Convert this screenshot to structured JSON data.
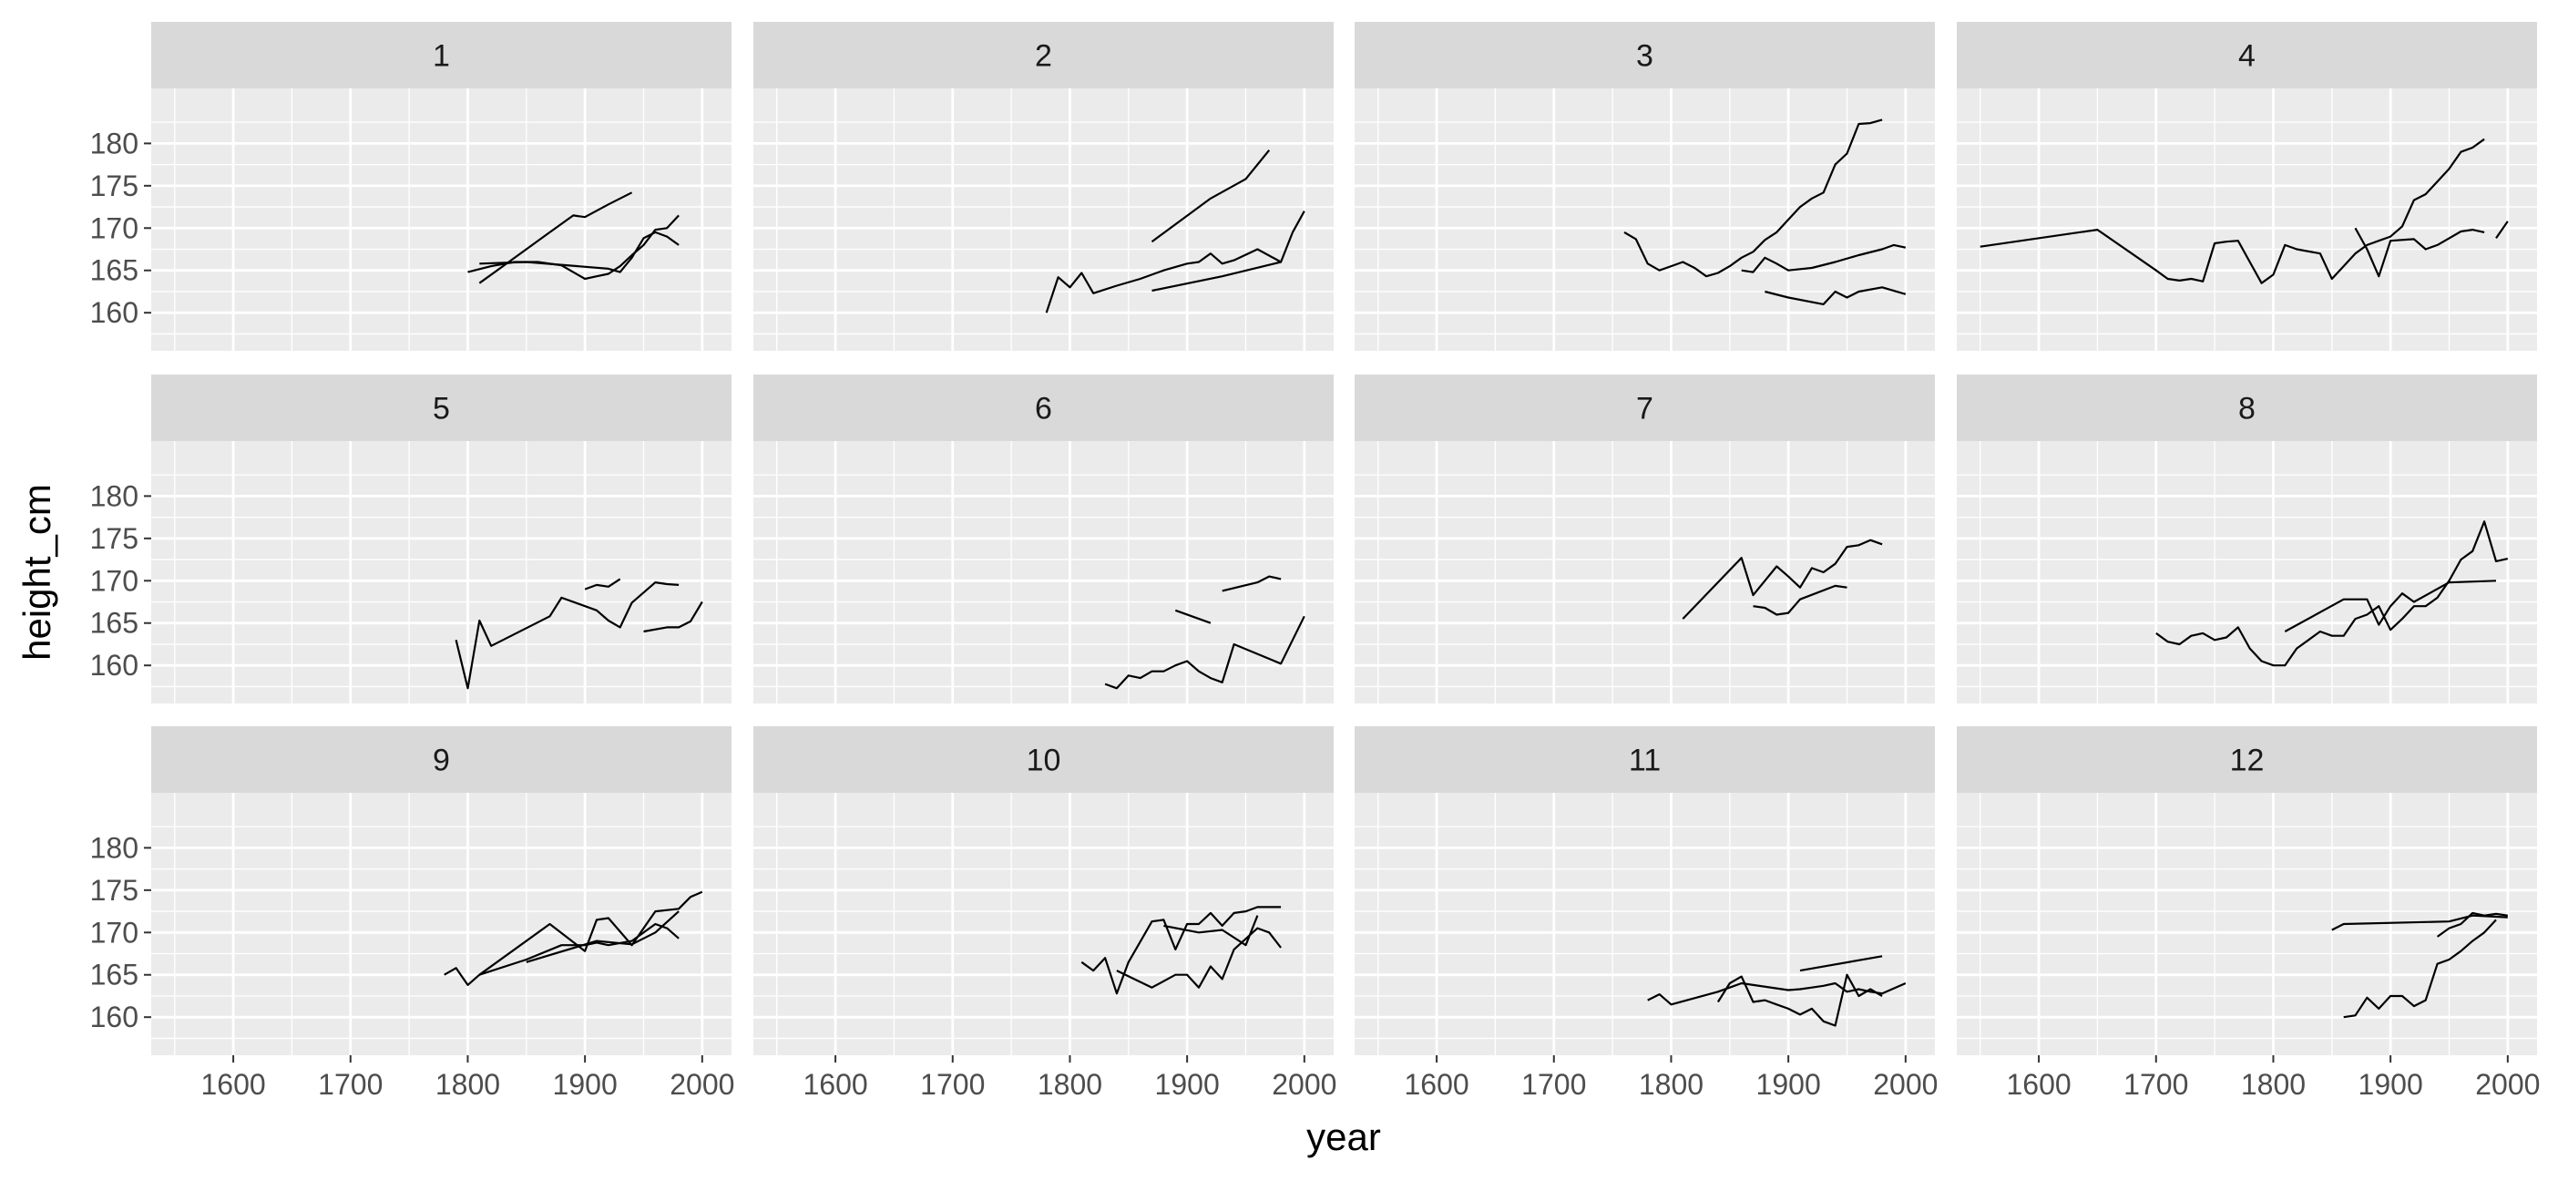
{
  "chart_data": {
    "type": "line",
    "facet_variable": "region",
    "xlabel": "year",
    "ylabel": "height_cm",
    "xlim": [
      1530,
      2025
    ],
    "ylim": [
      155.5,
      186.5
    ],
    "x_ticks": [
      1600,
      1700,
      1800,
      1900,
      2000
    ],
    "y_ticks": [
      160,
      165,
      170,
      175,
      180
    ],
    "grid": true,
    "line_color": "#000000",
    "panel_background": "#ebebeb",
    "strip_background": "#d9d9d9",
    "facets": [
      {
        "label": "1",
        "series": [
          {
            "x": [
              1800,
              1820,
              1840,
              1860,
              1880,
              1900,
              1910,
              1920,
              1930,
              1940,
              1950,
              1960,
              1970,
              1980
            ],
            "y": [
              164.8,
              165.5,
              166.0,
              166.0,
              165.6,
              164.0,
              164.3,
              164.6,
              165.5,
              166.8,
              168.0,
              169.8,
              170.0,
              171.5
            ]
          },
          {
            "x": [
              1810,
              1830,
              1850,
              1870,
              1890,
              1900,
              1920,
              1940
            ],
            "y": [
              163.5,
              165.5,
              167.5,
              169.5,
              171.5,
              171.3,
              172.8,
              174.2
            ]
          },
          {
            "x": [
              1810,
              1850,
              1920,
              1930,
              1940,
              1950,
              1960,
              1970,
              1980
            ],
            "y": [
              165.8,
              166.0,
              165.2,
              164.8,
              166.5,
              168.8,
              169.5,
              169.0,
              168.0
            ]
          }
        ]
      },
      {
        "label": "2",
        "series": [
          {
            "x": [
              1780,
              1790,
              1800,
              1810,
              1820,
              1840,
              1860,
              1880,
              1900,
              1910,
              1920,
              1930,
              1940,
              1960,
              1980,
              1990,
              2000
            ],
            "y": [
              160.0,
              164.2,
              163.0,
              164.7,
              162.3,
              163.2,
              164.0,
              165.0,
              165.8,
              166.0,
              167.0,
              165.8,
              166.2,
              167.5,
              166.0,
              169.5,
              172.0
            ]
          },
          {
            "x": [
              1870,
              1920,
              1950,
              1970
            ],
            "y": [
              168.4,
              173.5,
              175.8,
              179.2
            ]
          },
          {
            "x": [
              1870,
              1930,
              1980
            ],
            "y": [
              162.6,
              164.3,
              166.0
            ]
          }
        ]
      },
      {
        "label": "3",
        "series": [
          {
            "x": [
              1760,
              1770,
              1780,
              1790,
              1800,
              1810,
              1820,
              1830,
              1840,
              1850,
              1860,
              1870,
              1880,
              1890,
              1900,
              1910,
              1920,
              1930,
              1940,
              1950,
              1960,
              1970,
              1980
            ],
            "y": [
              169.5,
              168.7,
              165.8,
              165.0,
              165.5,
              166.0,
              165.3,
              164.3,
              164.7,
              165.5,
              166.5,
              167.2,
              168.6,
              169.5,
              171.0,
              172.5,
              173.5,
              174.2,
              177.5,
              178.8,
              182.3,
              182.4,
              182.8
            ]
          },
          {
            "x": [
              1860,
              1870,
              1880,
              1890,
              1900,
              1920,
              1940,
              1960,
              1980,
              1990,
              2000
            ],
            "y": [
              165.0,
              164.8,
              166.5,
              165.8,
              165.0,
              165.3,
              166.0,
              166.8,
              167.5,
              168.0,
              167.7
            ]
          },
          {
            "x": [
              1880,
              1900,
              1930,
              1940,
              1950,
              1960,
              1980,
              2000
            ],
            "y": [
              162.5,
              161.8,
              161.0,
              162.5,
              161.8,
              162.5,
              163.0,
              162.2
            ]
          }
        ]
      },
      {
        "label": "4",
        "series": [
          {
            "x": [
              1550,
              1650,
              1700,
              1710,
              1720,
              1730,
              1740,
              1750,
              1760,
              1770,
              1780,
              1790,
              1800,
              1810,
              1820,
              1840,
              1850,
              1860,
              1870,
              1880,
              1890,
              1900,
              1910,
              1920,
              1930,
              1940,
              1950,
              1960,
              1970,
              1980
            ],
            "y": [
              167.8,
              169.8,
              165.0,
              164.0,
              163.8,
              164.0,
              163.7,
              168.2,
              168.4,
              168.5,
              166.0,
              163.5,
              164.5,
              168.0,
              167.5,
              167.0,
              164.0,
              165.5,
              167.0,
              168.0,
              168.5,
              169.0,
              170.2,
              173.3,
              174.0,
              175.5,
              177.0,
              179.0,
              179.5,
              180.5
            ]
          },
          {
            "x": [
              1870,
              1880,
              1890,
              1900,
              1920,
              1930,
              1940,
              1960,
              1970,
              1980
            ],
            "y": [
              170.0,
              167.5,
              164.3,
              168.5,
              168.7,
              167.5,
              168.0,
              169.6,
              169.8,
              169.5
            ]
          },
          {
            "x": [
              1990,
              2000
            ],
            "y": [
              168.8,
              170.8
            ]
          }
        ]
      },
      {
        "label": "5",
        "series": [
          {
            "x": [
              1790,
              1800,
              1810,
              1820,
              1870,
              1880,
              1910,
              1920,
              1930,
              1940,
              1960,
              1970,
              1980
            ],
            "y": [
              163.0,
              157.3,
              165.3,
              162.3,
              165.8,
              168.0,
              166.5,
              165.3,
              164.5,
              167.4,
              169.8,
              169.6,
              169.5
            ]
          },
          {
            "x": [
              1900,
              1910,
              1920,
              1930
            ],
            "y": [
              169.0,
              169.5,
              169.3,
              170.2
            ]
          },
          {
            "x": [
              1950,
              1970,
              1980,
              1990,
              2000
            ],
            "y": [
              164.0,
              164.5,
              164.5,
              165.2,
              167.5
            ]
          }
        ]
      },
      {
        "label": "6",
        "series": [
          {
            "x": [
              1830,
              1840,
              1850,
              1860,
              1870,
              1880,
              1890,
              1900,
              1910,
              1920,
              1930,
              1940,
              1980,
              2000
            ],
            "y": [
              157.8,
              157.3,
              158.8,
              158.5,
              159.3,
              159.3,
              160.0,
              160.5,
              159.3,
              158.5,
              158.0,
              162.5,
              160.2,
              165.8
            ]
          },
          {
            "x": [
              1890,
              1920
            ],
            "y": [
              166.5,
              165.0
            ]
          },
          {
            "x": [
              1930,
              1960,
              1970,
              1980
            ],
            "y": [
              168.8,
              169.8,
              170.5,
              170.2
            ]
          }
        ]
      },
      {
        "label": "7",
        "series": [
          {
            "x": [
              1810,
              1860,
              1870,
              1890,
              1900,
              1910,
              1920,
              1930,
              1940,
              1950,
              1960,
              1970,
              1980
            ],
            "y": [
              165.5,
              172.7,
              168.3,
              171.7,
              170.5,
              169.2,
              171.5,
              171.0,
              172.0,
              174.0,
              174.2,
              174.8,
              174.3
            ]
          },
          {
            "x": [
              1870,
              1880,
              1890,
              1900,
              1910,
              1940,
              1950
            ],
            "y": [
              167.0,
              166.8,
              166.0,
              166.2,
              167.8,
              169.4,
              169.2
            ]
          }
        ]
      },
      {
        "label": "8",
        "series": [
          {
            "x": [
              1700,
              1710,
              1720,
              1730,
              1740,
              1750,
              1760,
              1770,
              1780,
              1790,
              1800,
              1810,
              1820,
              1830,
              1840,
              1850,
              1860,
              1870,
              1880,
              1890,
              1900,
              1910,
              1920,
              1930,
              1940,
              1950,
              1960,
              1970,
              1980,
              1990,
              2000
            ],
            "y": [
              163.8,
              162.8,
              162.5,
              163.5,
              163.8,
              163.0,
              163.3,
              164.5,
              162.0,
              160.5,
              160.0,
              160.0,
              162.0,
              163.0,
              164.0,
              163.5,
              163.5,
              165.5,
              166.0,
              167.0,
              164.2,
              165.5,
              167.0,
              167.0,
              168.0,
              170.0,
              172.5,
              173.5,
              177.0,
              172.3,
              172.6
            ]
          },
          {
            "x": [
              1810,
              1860,
              1880,
              1890,
              1900,
              1910,
              1920,
              1950,
              1990
            ],
            "y": [
              164.0,
              167.8,
              167.8,
              164.8,
              167.0,
              168.5,
              167.5,
              169.8,
              170.0
            ]
          }
        ]
      },
      {
        "label": "9",
        "series": [
          {
            "x": [
              1780,
              1790,
              1800,
              1810,
              1870,
              1900,
              1910,
              1920,
              1940,
              1950,
              1960,
              1980,
              1990,
              2000
            ],
            "y": [
              165.0,
              165.8,
              163.8,
              165.0,
              171.0,
              167.8,
              171.5,
              171.7,
              168.5,
              170.5,
              172.5,
              172.8,
              174.2,
              174.8
            ]
          },
          {
            "x": [
              1810,
              1850,
              1880,
              1900,
              1910,
              1920,
              1940,
              1960,
              1970,
              1980
            ],
            "y": [
              165.0,
              166.8,
              168.5,
              168.5,
              168.8,
              168.5,
              169.0,
              171.0,
              170.5,
              169.3
            ]
          },
          {
            "x": [
              1850,
              1910,
              1940,
              1960,
              1980
            ],
            "y": [
              166.5,
              169.0,
              168.6,
              170.0,
              172.5
            ]
          }
        ]
      },
      {
        "label": "10",
        "series": [
          {
            "x": [
              1810,
              1820,
              1830,
              1840,
              1850,
              1870,
              1880,
              1890,
              1900,
              1910,
              1920,
              1930,
              1940,
              1950,
              1960,
              1980
            ],
            "y": [
              166.5,
              165.5,
              167.0,
              162.8,
              166.5,
              171.3,
              171.5,
              168.0,
              171.0,
              171.0,
              172.3,
              170.8,
              172.3,
              172.5,
              173.0,
              173.0
            ]
          },
          {
            "x": [
              1840,
              1870,
              1890,
              1900,
              1910,
              1920,
              1930,
              1940,
              1960,
              1970,
              1980
            ],
            "y": [
              165.5,
              163.5,
              165.0,
              165.0,
              163.5,
              166.0,
              164.5,
              168.0,
              170.5,
              170.0,
              168.2
            ]
          },
          {
            "x": [
              1880,
              1910,
              1930,
              1950,
              1960
            ],
            "y": [
              170.8,
              170.0,
              170.3,
              168.5,
              172.0
            ]
          }
        ]
      },
      {
        "label": "11",
        "series": [
          {
            "x": [
              1780,
              1790,
              1800,
              1840,
              1860,
              1900,
              1910,
              1920,
              1930,
              1940,
              1950,
              1960,
              1970,
              1980,
              2000
            ],
            "y": [
              162.0,
              162.7,
              161.5,
              163.0,
              164.0,
              163.2,
              163.3,
              163.5,
              163.7,
              164.0,
              163.0,
              163.3,
              163.0,
              162.8,
              164.0
            ]
          },
          {
            "x": [
              1840,
              1850,
              1860,
              1870,
              1880,
              1890,
              1900,
              1910,
              1920,
              1930,
              1940,
              1950,
              1960,
              1970,
              1980
            ],
            "y": [
              161.8,
              164.0,
              164.8,
              161.8,
              162.0,
              161.5,
              161.0,
              160.3,
              161.0,
              159.5,
              159.0,
              165.0,
              162.5,
              163.3,
              162.5
            ]
          },
          {
            "x": [
              1910,
              1980
            ],
            "y": [
              165.5,
              167.2
            ]
          }
        ]
      },
      {
        "label": "12",
        "series": [
          {
            "x": [
              1860,
              1870,
              1880,
              1890,
              1900,
              1910,
              1920,
              1930,
              1940,
              1950,
              1960,
              1970,
              1980,
              1990
            ],
            "y": [
              160.0,
              160.2,
              162.3,
              161.0,
              162.5,
              162.5,
              161.3,
              162.0,
              166.3,
              166.8,
              167.8,
              169.0,
              170.0,
              171.5
            ]
          },
          {
            "x": [
              1850,
              1860,
              1950,
              1970,
              2000
            ],
            "y": [
              170.3,
              171.0,
              171.3,
              172.0,
              171.8
            ]
          },
          {
            "x": [
              1940,
              1950,
              1960,
              1970,
              1980,
              1990,
              2000
            ],
            "y": [
              169.5,
              170.5,
              171.0,
              172.3,
              172.0,
              172.2,
              172.0
            ]
          }
        ]
      }
    ]
  }
}
